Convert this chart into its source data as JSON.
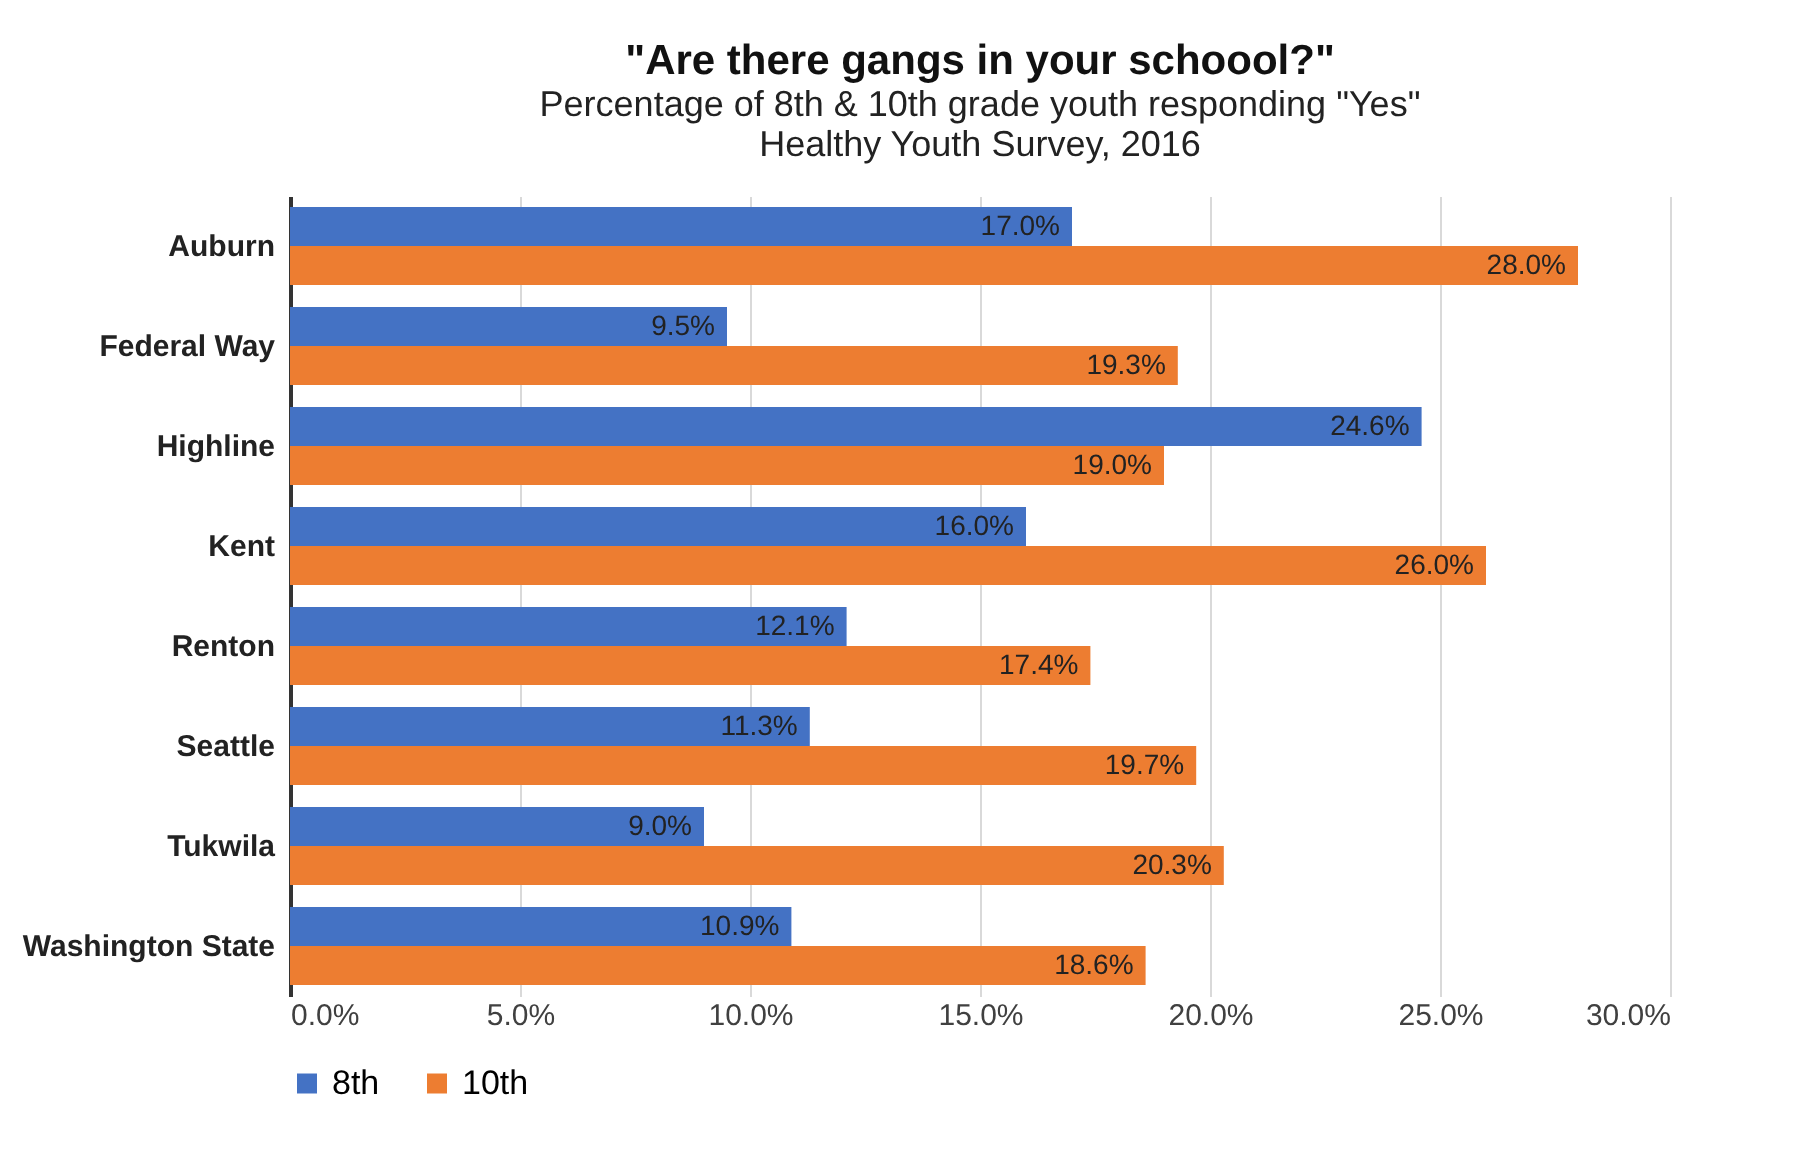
{
  "chart_data": {
    "type": "bar",
    "orientation": "horizontal",
    "title": "\"Are there gangs in your schoool?\"",
    "subtitle": "Percentage of 8th & 10th grade youth responding  \"Yes\"\nHealthy Youth Survey,  2016",
    "categories": [
      "Auburn",
      "Federal Way",
      "Highline",
      "Kent",
      "Renton",
      "Seattle",
      "Tukwila",
      "Washington State"
    ],
    "series": [
      {
        "name": "8th",
        "color": "#4472c4",
        "values": [
          17.0,
          9.5,
          24.6,
          16.0,
          12.1,
          11.3,
          9.0,
          10.9
        ],
        "value_labels": [
          "17.0%",
          "9.5%",
          "24.6%",
          "16.0%",
          "12.1%",
          "11.3%",
          "9.0%",
          "10.9%"
        ]
      },
      {
        "name": "10th",
        "color": "#ed7d31",
        "values": [
          28.0,
          19.3,
          19.0,
          26.0,
          17.4,
          19.7,
          20.3,
          18.6
        ],
        "value_labels": [
          "28.0%",
          "19.3%",
          "19.0%",
          "26.0%",
          "17.4%",
          "19.7%",
          "20.3%",
          "18.6%"
        ]
      }
    ],
    "xlim": [
      0,
      30
    ],
    "xticks": [
      {
        "value": 0,
        "label": "0.0%"
      },
      {
        "value": 5,
        "label": "5.0%"
      },
      {
        "value": 10,
        "label": "10.0%"
      },
      {
        "value": 15,
        "label": "15.0%"
      },
      {
        "value": 20,
        "label": "20.0%"
      },
      {
        "value": 25,
        "label": "25.0%"
      },
      {
        "value": 30,
        "label": "30.0%"
      }
    ],
    "grid": "x",
    "legend": "bottom"
  }
}
